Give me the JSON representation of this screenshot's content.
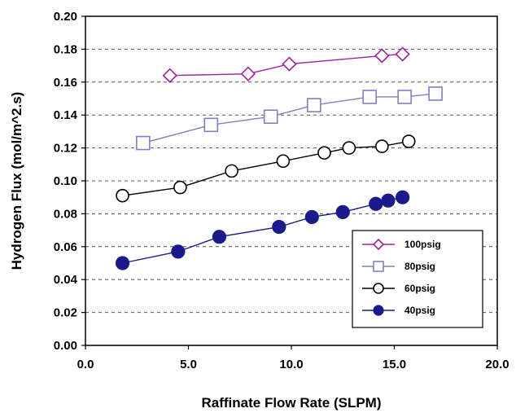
{
  "chart_data": {
    "type": "line",
    "title": "",
    "xlabel": "Raffinate Flow Rate (SLPM)",
    "ylabel": "Hydrogen Flux (mol/m^2.s)",
    "xlim": [
      0,
      20
    ],
    "ylim": [
      0,
      0.2
    ],
    "x_ticks": [
      "0.0",
      "5.0",
      "10.0",
      "15.0",
      "20.0"
    ],
    "y_ticks": [
      "0.00",
      "0.02",
      "0.04",
      "0.06",
      "0.08",
      "0.10",
      "0.12",
      "0.14",
      "0.16",
      "0.18",
      "0.20"
    ],
    "grid": "horizontal dashed",
    "legend_position": "bottom-right",
    "series": [
      {
        "name": "100psig",
        "marker": "diamond-open",
        "color": "#a020a0",
        "points": [
          [
            4.1,
            0.164
          ],
          [
            7.9,
            0.165
          ],
          [
            9.9,
            0.171
          ],
          [
            14.4,
            0.176
          ],
          [
            15.4,
            0.177
          ]
        ]
      },
      {
        "name": "80psig",
        "marker": "square-open",
        "color": "#8080c0",
        "points": [
          [
            2.8,
            0.123
          ],
          [
            6.1,
            0.134
          ],
          [
            9.0,
            0.139
          ],
          [
            11.1,
            0.146
          ],
          [
            13.8,
            0.151
          ],
          [
            15.5,
            0.151
          ],
          [
            17.0,
            0.153
          ]
        ]
      },
      {
        "name": "60psig",
        "marker": "circle-open",
        "color": "#000000",
        "points": [
          [
            1.8,
            0.091
          ],
          [
            4.6,
            0.096
          ],
          [
            7.1,
            0.106
          ],
          [
            9.6,
            0.112
          ],
          [
            11.6,
            0.117
          ],
          [
            12.8,
            0.12
          ],
          [
            14.4,
            0.121
          ],
          [
            15.7,
            0.124
          ]
        ]
      },
      {
        "name": "40psig",
        "marker": "circle-filled",
        "color": "#1a1a8a",
        "points": [
          [
            1.8,
            0.05
          ],
          [
            4.5,
            0.057
          ],
          [
            6.5,
            0.066
          ],
          [
            9.4,
            0.072
          ],
          [
            11.0,
            0.078
          ],
          [
            12.5,
            0.081
          ],
          [
            14.1,
            0.086
          ],
          [
            14.7,
            0.088
          ],
          [
            15.4,
            0.09
          ]
        ]
      }
    ]
  }
}
